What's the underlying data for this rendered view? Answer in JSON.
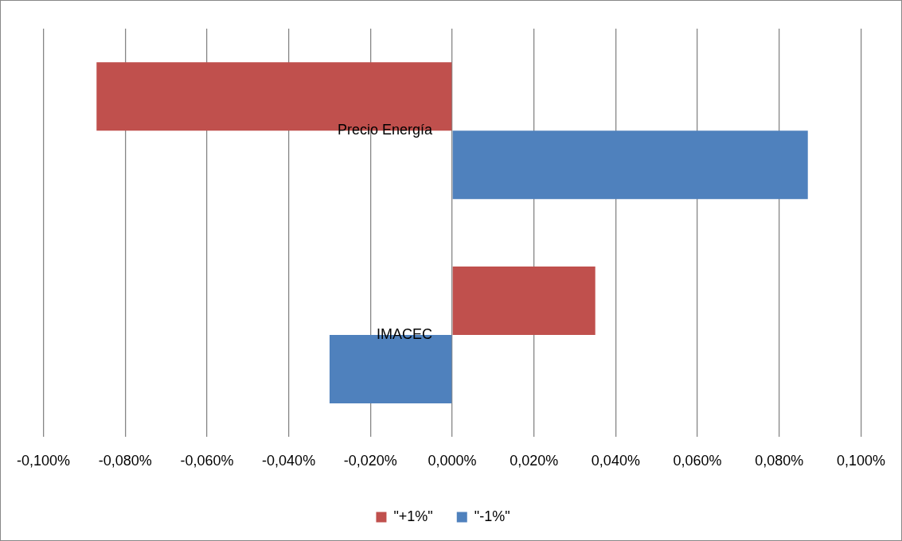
{
  "chart_data": {
    "type": "bar",
    "orientation": "horizontal",
    "categories": [
      "Precio Energía",
      "IMACEC"
    ],
    "series": [
      {
        "name": "\"+1%\"",
        "color": "#c0504d",
        "values": [
          -0.087,
          0.035
        ]
      },
      {
        "name": "\"-1%\"",
        "color": "#4f81bd",
        "values": [
          0.087,
          -0.03
        ]
      }
    ],
    "xlim": [
      -0.1,
      0.1
    ],
    "xticks": [
      {
        "value": -0.1,
        "label": "-0,100%"
      },
      {
        "value": -0.08,
        "label": "-0,080%"
      },
      {
        "value": -0.06,
        "label": "-0,060%"
      },
      {
        "value": -0.04,
        "label": "-0,040%"
      },
      {
        "value": -0.02,
        "label": "-0,020%"
      },
      {
        "value": 0,
        "label": "0,000%"
      },
      {
        "value": 0.02,
        "label": "0,020%"
      },
      {
        "value": 0.04,
        "label": "0,040%"
      },
      {
        "value": 0.06,
        "label": "0,060%"
      },
      {
        "value": 0.08,
        "label": "0,080%"
      },
      {
        "value": 0.1,
        "label": "0,100%"
      }
    ],
    "grid": "x",
    "legend": "bottom"
  }
}
